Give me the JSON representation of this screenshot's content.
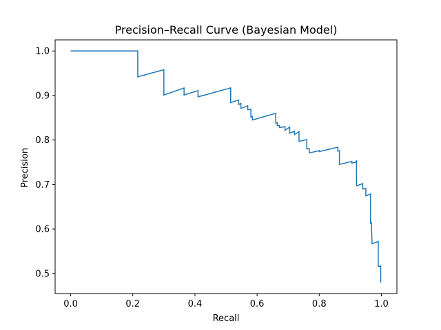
{
  "chart_data": {
    "type": "line",
    "title": "Precision–Recall Curve (Bayesian Model)",
    "xlabel": "Recall",
    "ylabel": "Precision",
    "xlim": [
      -0.05,
      1.05
    ],
    "ylim": [
      0.455,
      1.025
    ],
    "x_ticks": [
      0.0,
      0.2,
      0.4,
      0.6,
      0.8,
      1.0
    ],
    "x_tick_labels": [
      "0.0",
      "0.2",
      "0.4",
      "0.6",
      "0.8",
      "1.0"
    ],
    "y_ticks": [
      0.5,
      0.6,
      0.7,
      0.8,
      0.9,
      1.0
    ],
    "y_tick_labels": [
      "0.5",
      "0.6",
      "0.7",
      "0.8",
      "0.9",
      "1.0"
    ],
    "grid": false,
    "series": [
      {
        "color": "#1f77b4",
        "x": [
          0.0,
          0.216,
          0.216,
          0.3,
          0.3,
          0.365,
          0.365,
          0.41,
          0.41,
          0.515,
          0.515,
          0.54,
          0.54,
          0.548,
          0.548,
          0.57,
          0.57,
          0.58,
          0.58,
          0.585,
          0.585,
          0.66,
          0.66,
          0.665,
          0.665,
          0.672,
          0.672,
          0.69,
          0.69,
          0.705,
          0.705,
          0.72,
          0.72,
          0.735,
          0.735,
          0.76,
          0.76,
          0.768,
          0.768,
          0.8,
          0.8,
          0.86,
          0.86,
          0.865,
          0.865,
          0.905,
          0.905,
          0.915,
          0.915,
          0.92,
          0.92,
          0.94,
          0.94,
          0.95,
          0.95,
          0.96,
          0.96,
          0.965,
          0.965,
          0.968,
          0.968,
          0.97,
          0.97,
          0.99,
          0.99,
          0.998,
          0.998
        ],
        "y": [
          1.0,
          1.0,
          0.942,
          0.958,
          0.901,
          0.917,
          0.901,
          0.911,
          0.897,
          0.917,
          0.884,
          0.89,
          0.88,
          0.882,
          0.871,
          0.877,
          0.868,
          0.869,
          0.852,
          0.853,
          0.845,
          0.86,
          0.838,
          0.839,
          0.832,
          0.833,
          0.828,
          0.83,
          0.822,
          0.829,
          0.815,
          0.82,
          0.812,
          0.819,
          0.797,
          0.801,
          0.78,
          0.781,
          0.771,
          0.776,
          0.774,
          0.784,
          0.775,
          0.776,
          0.745,
          0.752,
          0.748,
          0.75,
          0.75,
          0.753,
          0.697,
          0.702,
          0.69,
          0.691,
          0.675,
          0.677,
          0.677,
          0.679,
          0.613,
          0.614,
          0.613,
          0.567,
          0.567,
          0.572,
          0.516,
          0.517,
          0.48
        ]
      }
    ]
  }
}
